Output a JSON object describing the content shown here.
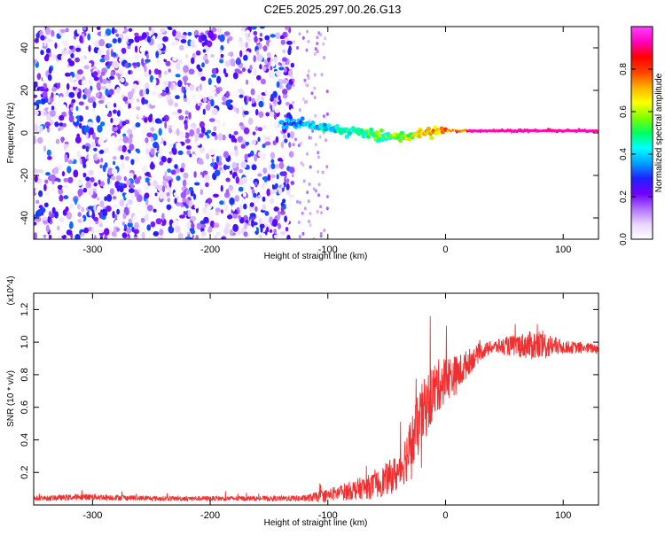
{
  "page_title": "C2E5.2025.297.00.26.G13",
  "colorbar": {
    "label": "Normalized spectral amplitude",
    "ticks": [
      0.0,
      0.2,
      0.4,
      0.6,
      0.8
    ],
    "range": [
      0,
      1
    ],
    "colors": [
      "#ffffff",
      "#e8d4ff",
      "#b070ff",
      "#7000ff",
      "#2020ff",
      "#00a0ff",
      "#00ffff",
      "#00ff60",
      "#80ff00",
      "#ffff00",
      "#ffb000",
      "#ff4000",
      "#ff0000",
      "#ff00c0",
      "#ff40ff"
    ]
  },
  "chart_data": [
    {
      "type": "heatmap",
      "xlabel": "Height of straight line (km)",
      "ylabel": "Frequency (Hz)",
      "xlim": [
        -350,
        130
      ],
      "ylim": [
        -50,
        50
      ],
      "xticks": [
        -300,
        -200,
        -100,
        0,
        100
      ],
      "yticks": [
        -40,
        -20,
        0,
        20,
        40
      ],
      "noise_region_x": [
        -350,
        -130
      ],
      "signal_track": {
        "x": [
          -140,
          -120,
          -100,
          -80,
          -60,
          -40,
          -20,
          0,
          20,
          60,
          100,
          130
        ],
        "freq_hz": [
          5,
          4,
          2,
          1,
          -1,
          -2,
          0,
          1,
          1,
          1,
          1,
          1
        ],
        "amplitude": [
          0.35,
          0.4,
          0.45,
          0.5,
          0.55,
          0.6,
          0.7,
          0.8,
          0.9,
          0.95,
          0.95,
          0.95
        ]
      }
    },
    {
      "type": "line",
      "xlabel": "Height of straight line (km)",
      "ylabel": "SNR (10 * v/v)",
      "scale_label": "(x10^4)",
      "xlim": [
        -350,
        130
      ],
      "ylim": [
        0,
        1.3
      ],
      "xticks": [
        -300,
        -200,
        -100,
        0,
        100
      ],
      "yticks": [
        0.2,
        0.4,
        0.6,
        0.8,
        1.0,
        1.2
      ],
      "series": [
        {
          "color": "#f03030",
          "x": [
            -350,
            -300,
            -250,
            -200,
            -150,
            -120,
            -100,
            -80,
            -60,
            -40,
            -30,
            -20,
            -10,
            0,
            10,
            20,
            30,
            40,
            60,
            80,
            100,
            130
          ],
          "y": [
            0.04,
            0.05,
            0.04,
            0.04,
            0.04,
            0.04,
            0.06,
            0.09,
            0.12,
            0.2,
            0.35,
            0.55,
            0.7,
            0.78,
            0.8,
            0.88,
            0.94,
            0.97,
            0.98,
            0.98,
            0.97,
            0.96
          ],
          "noise": [
            0.015,
            0.02,
            0.015,
            0.015,
            0.015,
            0.02,
            0.04,
            0.06,
            0.08,
            0.12,
            0.18,
            0.2,
            0.18,
            0.14,
            0.12,
            0.08,
            0.05,
            0.04,
            0.07,
            0.1,
            0.04,
            0.03
          ]
        }
      ]
    }
  ]
}
